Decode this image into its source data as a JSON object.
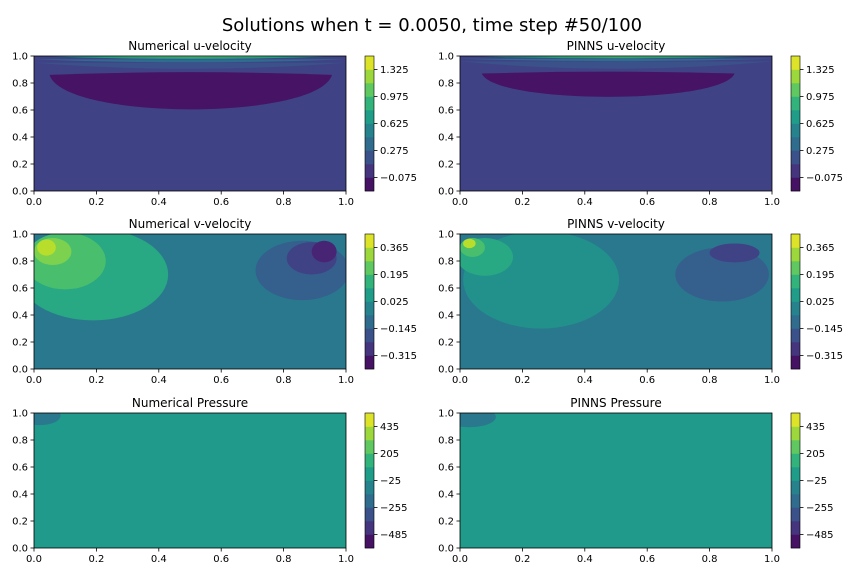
{
  "figure": {
    "suptitle": "Solutions when t = 0.0050, time step #50/100"
  },
  "colormap": {
    "name": "viridis",
    "stops": [
      "#440154",
      "#482878",
      "#3e4989",
      "#31688e",
      "#26828e",
      "#1f9e89",
      "#35b779",
      "#6ece58",
      "#b5de2b",
      "#fde725"
    ]
  },
  "chart_data": [
    {
      "type": "heatmap",
      "title": "Numerical u-velocity",
      "xlim": [
        0,
        1
      ],
      "ylim": [
        0,
        1
      ],
      "xticks": [
        "0.0",
        "0.2",
        "0.4",
        "0.6",
        "0.8",
        "1.0"
      ],
      "yticks": [
        "0.0",
        "0.2",
        "0.4",
        "0.6",
        "0.8",
        "1.0"
      ],
      "clim": [
        -0.25,
        1.5
      ],
      "colorbar_ticks": [
        {
          "value": -0.075,
          "label": "−0.075"
        },
        {
          "value": 0.275,
          "label": "0.275"
        },
        {
          "value": 0.625,
          "label": "0.625"
        },
        {
          "value": 0.975,
          "label": "0.975"
        },
        {
          "value": 1.325,
          "label": "1.325"
        }
      ],
      "background_level": 0.1,
      "regions": [
        {
          "shape": "bowl",
          "level": -0.16,
          "x": [
            0.05,
            0.955
          ],
          "y_top": 0.86,
          "y_bottom": 0.52
        },
        {
          "shape": "band",
          "level": 0.19,
          "x": [
            0.0,
            1.0
          ],
          "y": [
            0.9,
            0.95
          ]
        },
        {
          "shape": "band",
          "level": 0.36,
          "x": [
            0.0,
            1.0
          ],
          "y": [
            0.95,
            0.975
          ]
        },
        {
          "shape": "band",
          "level": 0.71,
          "x": [
            0.02,
            0.98
          ],
          "y": [
            0.975,
            1.0
          ]
        },
        {
          "shape": "band",
          "level": 1.06,
          "x": [
            0.1,
            0.9
          ],
          "y": [
            0.99,
            1.0
          ]
        }
      ]
    },
    {
      "type": "heatmap",
      "title": "PINNS u-velocity",
      "xlim": [
        0,
        1
      ],
      "ylim": [
        0,
        1
      ],
      "xticks": [
        "0.0",
        "0.2",
        "0.4",
        "0.6",
        "0.8",
        "1.0"
      ],
      "yticks": [
        "0.0",
        "0.2",
        "0.4",
        "0.6",
        "0.8",
        "1.0"
      ],
      "clim": [
        -0.25,
        1.5
      ],
      "colorbar_ticks": [
        {
          "value": -0.075,
          "label": "−0.075"
        },
        {
          "value": 0.275,
          "label": "0.275"
        },
        {
          "value": 0.625,
          "label": "0.625"
        },
        {
          "value": 0.975,
          "label": "0.975"
        },
        {
          "value": 1.325,
          "label": "1.325"
        }
      ],
      "background_level": 0.1,
      "regions": [
        {
          "shape": "bowl",
          "level": -0.16,
          "x": [
            0.07,
            0.88
          ],
          "y_top": 0.87,
          "y_bottom": 0.64
        },
        {
          "shape": "band",
          "level": 0.19,
          "x": [
            0.0,
            1.0
          ],
          "y": [
            0.9,
            0.96
          ]
        },
        {
          "shape": "band",
          "level": 0.36,
          "x": [
            0.0,
            1.0
          ],
          "y": [
            0.96,
            0.98
          ]
        },
        {
          "shape": "band",
          "level": 0.71,
          "x": [
            0.02,
            0.98
          ],
          "y": [
            0.98,
            1.0
          ]
        },
        {
          "shape": "band",
          "level": 1.06,
          "x": [
            0.1,
            0.9
          ],
          "y": [
            0.99,
            1.0
          ]
        }
      ]
    },
    {
      "type": "heatmap",
      "title": "Numerical v-velocity",
      "xlim": [
        0,
        1
      ],
      "ylim": [
        0,
        1
      ],
      "xticks": [
        "0.0",
        "0.2",
        "0.4",
        "0.6",
        "0.8",
        "1.0"
      ],
      "yticks": [
        "0.0",
        "0.2",
        "0.4",
        "0.6",
        "0.8",
        "1.0"
      ],
      "clim": [
        -0.4,
        0.45
      ],
      "colorbar_ticks": [
        {
          "value": -0.315,
          "label": "−0.315"
        },
        {
          "value": -0.145,
          "label": "−0.145"
        },
        {
          "value": 0.025,
          "label": "0.025"
        },
        {
          "value": 0.195,
          "label": "0.195"
        },
        {
          "value": 0.365,
          "label": "0.365"
        }
      ],
      "background_level": -0.06,
      "regions": [
        {
          "shape": "ellipse",
          "level": 0.11,
          "cx": 0.19,
          "cy": 0.7,
          "rx": 0.24,
          "ry": 0.34
        },
        {
          "shape": "ellipse",
          "level": 0.2,
          "cx": 0.1,
          "cy": 0.8,
          "rx": 0.13,
          "ry": 0.21
        },
        {
          "shape": "ellipse",
          "level": 0.28,
          "cx": 0.06,
          "cy": 0.87,
          "rx": 0.06,
          "ry": 0.1
        },
        {
          "shape": "ellipse",
          "level": 0.36,
          "cx": 0.04,
          "cy": 0.9,
          "rx": 0.03,
          "ry": 0.06
        },
        {
          "shape": "ellipse",
          "level": -0.145,
          "cx": 0.86,
          "cy": 0.73,
          "rx": 0.15,
          "ry": 0.22
        },
        {
          "shape": "ellipse",
          "level": -0.23,
          "cx": 0.89,
          "cy": 0.82,
          "rx": 0.08,
          "ry": 0.12
        },
        {
          "shape": "ellipse",
          "level": -0.315,
          "cx": 0.93,
          "cy": 0.87,
          "rx": 0.04,
          "ry": 0.08
        }
      ]
    },
    {
      "type": "heatmap",
      "title": "PINNS v-velocity",
      "xlim": [
        0,
        1
      ],
      "ylim": [
        0,
        1
      ],
      "xticks": [
        "0.0",
        "0.2",
        "0.4",
        "0.6",
        "0.8",
        "1.0"
      ],
      "yticks": [
        "0.0",
        "0.2",
        "0.4",
        "0.6",
        "0.8",
        "1.0"
      ],
      "clim": [
        -0.4,
        0.45
      ],
      "colorbar_ticks": [
        {
          "value": -0.315,
          "label": "−0.315"
        },
        {
          "value": -0.145,
          "label": "−0.145"
        },
        {
          "value": 0.025,
          "label": "0.025"
        },
        {
          "value": 0.195,
          "label": "0.195"
        },
        {
          "value": 0.365,
          "label": "0.365"
        }
      ],
      "background_level": -0.06,
      "regions": [
        {
          "shape": "ellipse",
          "level": 0.03,
          "cx": 0.26,
          "cy": 0.66,
          "rx": 0.25,
          "ry": 0.36
        },
        {
          "shape": "ellipse",
          "level": 0.11,
          "cx": 0.08,
          "cy": 0.83,
          "rx": 0.09,
          "ry": 0.14
        },
        {
          "shape": "ellipse",
          "level": 0.2,
          "cx": 0.04,
          "cy": 0.9,
          "rx": 0.04,
          "ry": 0.07
        },
        {
          "shape": "ellipse",
          "level": 0.36,
          "cx": 0.03,
          "cy": 0.93,
          "rx": 0.02,
          "ry": 0.035
        },
        {
          "shape": "ellipse",
          "level": -0.145,
          "cx": 0.84,
          "cy": 0.7,
          "rx": 0.15,
          "ry": 0.2
        },
        {
          "shape": "ellipse",
          "level": -0.23,
          "cx": 0.88,
          "cy": 0.86,
          "rx": 0.08,
          "ry": 0.07
        }
      ]
    },
    {
      "type": "heatmap",
      "title": "Numerical Pressure",
      "xlim": [
        0,
        1
      ],
      "ylim": [
        0,
        1
      ],
      "xticks": [
        "0.0",
        "0.2",
        "0.4",
        "0.6",
        "0.8",
        "1.0"
      ],
      "yticks": [
        "0.0",
        "0.2",
        "0.4",
        "0.6",
        "0.8",
        "1.0"
      ],
      "clim": [
        -600,
        550
      ],
      "colorbar_ticks": [
        {
          "value": -485,
          "label": "−485"
        },
        {
          "value": -255,
          "label": "−255"
        },
        {
          "value": -25,
          "label": "−25"
        },
        {
          "value": 205,
          "label": "205"
        },
        {
          "value": 435,
          "label": "435"
        }
      ],
      "background_level": 20,
      "regions": [
        {
          "shape": "ellipse",
          "level": -140,
          "cx": 0.02,
          "cy": 0.98,
          "rx": 0.065,
          "ry": 0.07
        }
      ]
    },
    {
      "type": "heatmap",
      "title": "PINNS Pressure",
      "xlim": [
        0,
        1
      ],
      "ylim": [
        0,
        1
      ],
      "xticks": [
        "0.0",
        "0.2",
        "0.4",
        "0.6",
        "0.8",
        "1.0"
      ],
      "yticks": [
        "0.0",
        "0.2",
        "0.4",
        "0.6",
        "0.8",
        "1.0"
      ],
      "clim": [
        -600,
        550
      ],
      "colorbar_ticks": [
        {
          "value": -485,
          "label": "−485"
        },
        {
          "value": -255,
          "label": "−255"
        },
        {
          "value": -25,
          "label": "−25"
        },
        {
          "value": 205,
          "label": "205"
        },
        {
          "value": 435,
          "label": "435"
        }
      ],
      "background_level": 20,
      "regions": [
        {
          "shape": "ellipse",
          "level": -140,
          "cx": 0.03,
          "cy": 0.97,
          "rx": 0.085,
          "ry": 0.075
        }
      ]
    }
  ]
}
